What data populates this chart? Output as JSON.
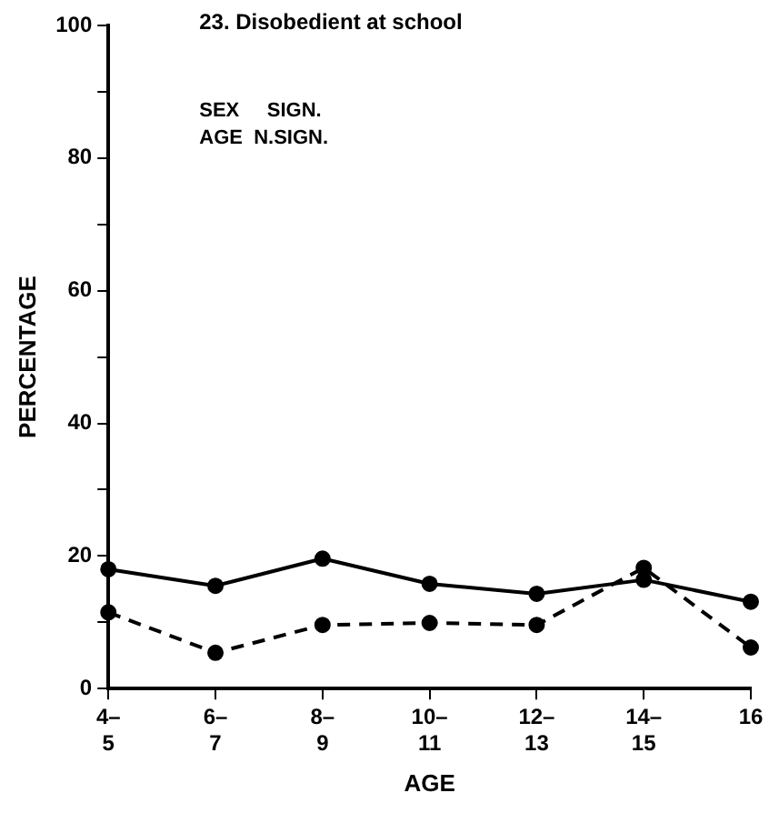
{
  "chart_data": {
    "type": "line",
    "title": "23. Disobedient at school",
    "xlabel": "AGE",
    "ylabel": "PERCENTAGE",
    "annotations": [
      "SEX     SIGN.",
      "AGE  N.SIGN."
    ],
    "categories": [
      "4–\n5",
      "6–\n7",
      "8–\n9",
      "10–\n11",
      "12–\n13",
      "14–\n15",
      "16"
    ],
    "series": [
      {
        "color": "#000000",
        "line_style": "solid",
        "values": [
          18.0,
          15.5,
          19.6,
          15.8,
          14.3,
          16.4,
          13.1
        ]
      },
      {
        "color": "#000000",
        "line_style": "dashed",
        "values": [
          11.5,
          5.4,
          9.6,
          9.9,
          9.6,
          18.2,
          6.2
        ]
      }
    ],
    "ylim": [
      0,
      100
    ],
    "yticks": [
      0,
      {
        "value": 10,
        "label": null
      },
      20,
      {
        "value": 30,
        "label": null
      },
      40,
      {
        "value": 50,
        "label": null
      },
      60,
      {
        "value": 70,
        "label": null
      },
      80,
      {
        "value": 90,
        "label": null
      },
      100
    ],
    "grid": false,
    "legend": false,
    "marker": "circle"
  }
}
